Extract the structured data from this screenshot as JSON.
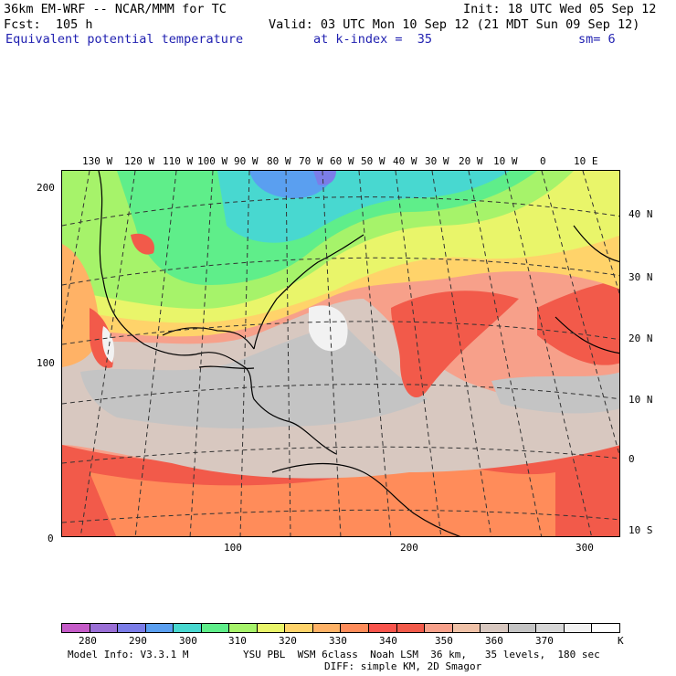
{
  "header": {
    "model": "36km EM-WRF -- NCAR/MMM for TC",
    "init": "Init: 18 UTC Wed 05 Sep 12",
    "forecast": "Fcst:  105 h",
    "valid": "Valid: 03 UTC Mon 10 Sep 12 (21 MDT Sun 09 Sep 12)",
    "field": "Equivalent potential temperature",
    "level": "at k-index =  35",
    "smoothing": "sm= 6"
  },
  "grid_ticks": {
    "x": [
      "100",
      "200",
      "300"
    ],
    "y": [
      "200",
      "100",
      "0"
    ]
  },
  "longitude_labels": [
    "130 W",
    "120 W",
    "110 W",
    "100 W",
    "90 W",
    "80 W",
    "70 W",
    "60 W",
    "50 W",
    "40 W",
    "30 W",
    "20 W",
    "10 W",
    "0",
    "10 E"
  ],
  "latitude_labels": [
    "40 N",
    "30 N",
    "20 N",
    "10 N",
    "0",
    "10 S"
  ],
  "colorbar": {
    "unit": "K",
    "labels": [
      "280",
      "290",
      "300",
      "310",
      "320",
      "330",
      "340",
      "350",
      "360",
      "370"
    ],
    "colors": [
      "#c55bc8",
      "#9a6fd6",
      "#7b7de8",
      "#5a9ff0",
      "#48d8d0",
      "#5fee8a",
      "#a6f36a",
      "#e9f56a",
      "#ffd36a",
      "#ffb266",
      "#ff8c5a",
      "#f9544c",
      "#f25a4a",
      "#f7a08a",
      "#f0c2a8",
      "#d8c8c0",
      "#c4c4c4",
      "#d7d7d7",
      "#f2f2f2",
      "#ffffff"
    ]
  },
  "footer": {
    "model_info": "Model Info: V3.3.1 M",
    "physics": "YSU PBL  WSM 6class  Noah LSM  36 km,   35 levels,  180 sec",
    "diffusion": "DIFF: simple KM, 2D Smagor"
  }
}
